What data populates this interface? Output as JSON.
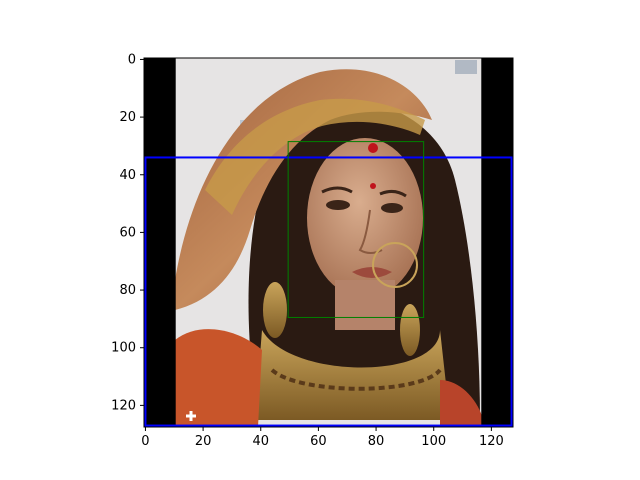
{
  "chart_data": {
    "type": "image",
    "title": "",
    "xlabel": "",
    "ylabel": "",
    "xlim": [
      -0.5,
      127.5
    ],
    "ylim": [
      127.5,
      -0.5
    ],
    "x_ticks": [
      0,
      20,
      40,
      60,
      80,
      100,
      120
    ],
    "y_ticks": [
      0,
      20,
      40,
      60,
      80,
      100,
      120
    ],
    "image": {
      "width": 128,
      "height": 128,
      "description": "pixelated portrait of a woman in an orange-gold veil and heavy gold jewellery",
      "black_border_left_cols": [
        -0.5,
        10.5
      ],
      "black_border_right_cols": [
        116.5,
        127.5
      ]
    },
    "boxes": [
      {
        "name": "blue-box",
        "color": "#0000ff",
        "x0": 0,
        "y0": 34,
        "x1": 127,
        "y1": 127,
        "linewidth": 2
      },
      {
        "name": "green-box",
        "color": "#008000",
        "x0": 49.5,
        "y0": 28.5,
        "x1": 96.5,
        "y1": 89.5,
        "linewidth": 1
      }
    ]
  },
  "colors": {
    "axis": "#000000",
    "background": "#ffffff",
    "wall": "#e6e4e4",
    "skin": "#c99a7a",
    "veil": "#b87a4e",
    "hair": "#2a1a12",
    "gold": "#a88436",
    "dress": "#c8552a"
  }
}
